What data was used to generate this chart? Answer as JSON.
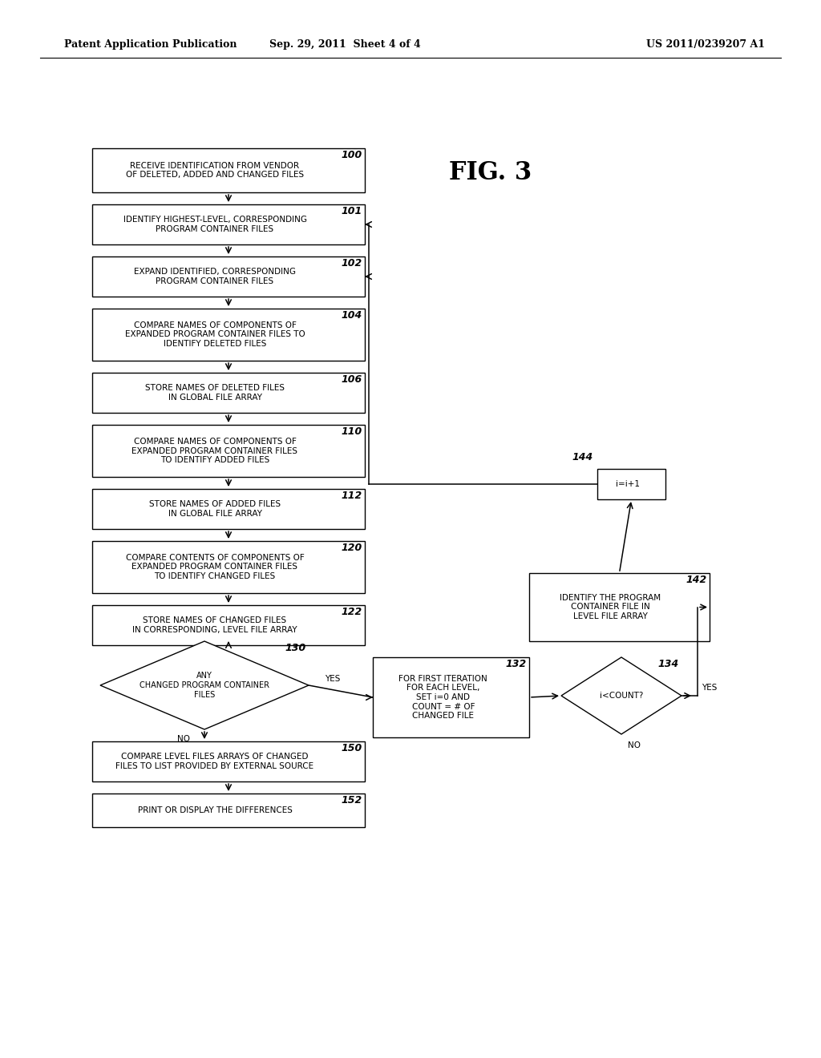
{
  "title_left": "Patent Application Publication",
  "title_mid": "Sep. 29, 2011  Sheet 4 of 4",
  "title_right": "US 2011/0239207 A1",
  "fig_label": "FIG. 3",
  "background": "#ffffff"
}
